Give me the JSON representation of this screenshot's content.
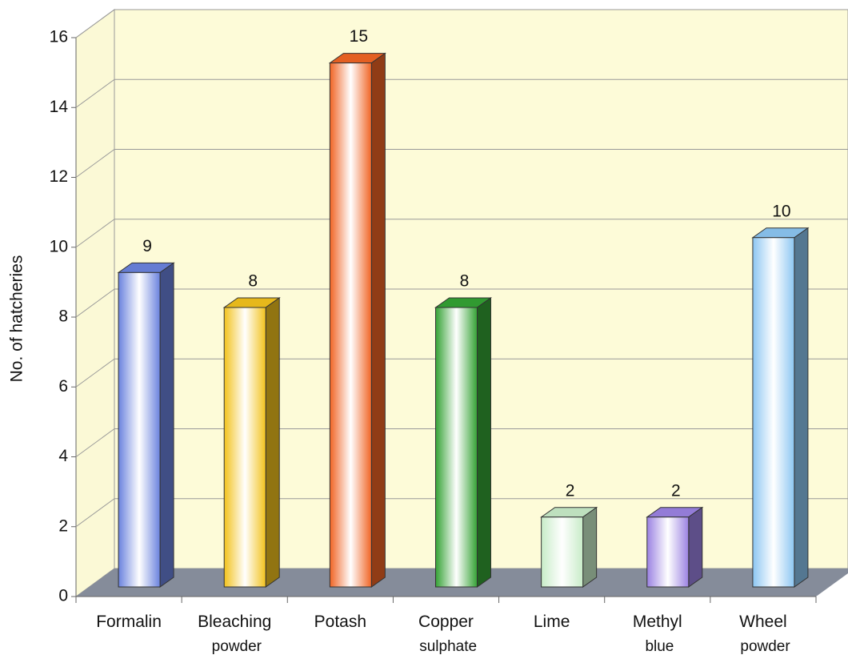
{
  "chart_data": {
    "type": "bar3d",
    "y_label": "No. of hatcheries",
    "categories": [
      "Formalin",
      "Bleaching powder",
      "Potash",
      "Copper sulphate",
      "Lime",
      "Methyl blue",
      "Wheel powder"
    ],
    "values": [
      9,
      8,
      15,
      8,
      2,
      2,
      10
    ],
    "colors": [
      "#6a82de",
      "#f2c21c",
      "#f06424",
      "#34a234",
      "#c8ecc8",
      "#9b82e2",
      "#8cc6f2"
    ],
    "ylim": [
      0,
      16
    ],
    "yticks": [
      0,
      2,
      4,
      6,
      8,
      10,
      12,
      14,
      16
    ],
    "grid": true
  }
}
